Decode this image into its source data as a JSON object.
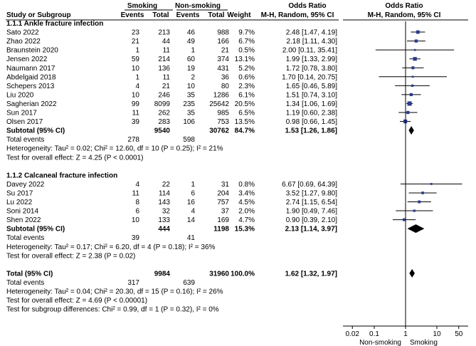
{
  "header": {
    "group_smoking": "Smoking",
    "group_nonsmoking": "Non-smoking",
    "odds_ratio": "Odds Ratio",
    "odds_ratio_right": "Odds Ratio",
    "study": "Study or Subgroup",
    "events1": "Events",
    "total1": "Total",
    "events2": "Events",
    "total2": "Total",
    "weight": "Weight",
    "method": "M-H, Random, 95% CI",
    "method_right": "M-H, Random, 95% CI"
  },
  "chart_data": {
    "type": "forest",
    "x_scale": "log",
    "xlim": [
      0.01,
      100
    ],
    "ticks": [
      "0.02",
      "0.1",
      "1",
      "10",
      "50"
    ],
    "tick_values": [
      0.02,
      0.1,
      1,
      10,
      50
    ],
    "xlabel_left": "Non-smoking",
    "xlabel_right": "Smoking",
    "null_value": 1,
    "subgroups": [
      {
        "title": "1.1.1 Ankle fracture infection",
        "studies": [
          {
            "name": "Sato 2022",
            "e1": "23",
            "t1": "213",
            "e2": "46",
            "t2": "988",
            "weight": "9.7%",
            "ci_text": "2.48 [1.47, 4.19]",
            "or": 2.48,
            "lo": 1.47,
            "hi": 4.19
          },
          {
            "name": "Zhao 2022",
            "e1": "21",
            "t1": "44",
            "e2": "49",
            "t2": "166",
            "weight": "6.7%",
            "ci_text": "2.18 [1.11, 4.30]",
            "or": 2.18,
            "lo": 1.11,
            "hi": 4.3
          },
          {
            "name": "Braunstein 2020",
            "e1": "1",
            "t1": "11",
            "e2": "1",
            "t2": "21",
            "weight": "0.5%",
            "ci_text": "2.00 [0.11, 35.41]",
            "or": 2.0,
            "lo": 0.11,
            "hi": 35.41
          },
          {
            "name": "Jensen 2022",
            "e1": "59",
            "t1": "214",
            "e2": "60",
            "t2": "374",
            "weight": "13.1%",
            "ci_text": "1.99 [1.33, 2.99]",
            "or": 1.99,
            "lo": 1.33,
            "hi": 2.99
          },
          {
            "name": "Naumann 2017",
            "e1": "10",
            "t1": "136",
            "e2": "19",
            "t2": "431",
            "weight": "5.2%",
            "ci_text": "1.72 [0.78, 3.80]",
            "or": 1.72,
            "lo": 0.78,
            "hi": 3.8
          },
          {
            "name": "Abdelgaid 2018",
            "e1": "1",
            "t1": "11",
            "e2": "2",
            "t2": "36",
            "weight": "0.6%",
            "ci_text": "1.70 [0.14, 20.75]",
            "or": 1.7,
            "lo": 0.14,
            "hi": 20.75
          },
          {
            "name": "Schepers 2013",
            "e1": "4",
            "t1": "21",
            "e2": "10",
            "t2": "80",
            "weight": "2.3%",
            "ci_text": "1.65 [0.46, 5.89]",
            "or": 1.65,
            "lo": 0.46,
            "hi": 5.89
          },
          {
            "name": "Liu 2020",
            "e1": "10",
            "t1": "246",
            "e2": "35",
            "t2": "1286",
            "weight": "6.1%",
            "ci_text": "1.51 [0.74, 3.10]",
            "or": 1.51,
            "lo": 0.74,
            "hi": 3.1
          },
          {
            "name": "Sagherian 2022",
            "e1": "99",
            "t1": "8099",
            "e2": "235",
            "t2": "25642",
            "weight": "20.5%",
            "ci_text": "1.34 [1.06, 1.69]",
            "or": 1.34,
            "lo": 1.06,
            "hi": 1.69
          },
          {
            "name": "Sun 2017",
            "e1": "11",
            "t1": "262",
            "e2": "35",
            "t2": "985",
            "weight": "6.5%",
            "ci_text": "1.19 [0.60, 2.38]",
            "or": 1.19,
            "lo": 0.6,
            "hi": 2.38
          },
          {
            "name": "Olsen 2017",
            "e1": "39",
            "t1": "283",
            "e2": "106",
            "t2": "753",
            "weight": "13.5%",
            "ci_text": "0.98 [0.66, 1.45]",
            "or": 0.98,
            "lo": 0.66,
            "hi": 1.45
          }
        ],
        "subtotal": {
          "label": "Subtotal (95% CI)",
          "t1": "9540",
          "t2": "30762",
          "weight": "84.7%",
          "ci_text": "1.53 [1.26, 1.86]",
          "or": 1.53,
          "lo": 1.26,
          "hi": 1.86
        },
        "total_events": {
          "label": "Total events",
          "e1": "278",
          "e2": "598"
        },
        "heterogeneity": "Heterogeneity: Tau² = 0.02; Chi² = 12.60, df = 10 (P = 0.25); I² = 21%",
        "overall": "Test for overall effect: Z = 4.25 (P < 0.0001)"
      },
      {
        "title": "1.1.2 Calcaneal fracture infection",
        "studies": [
          {
            "name": "Davey 2022",
            "e1": "4",
            "t1": "22",
            "e2": "1",
            "t2": "31",
            "weight": "0.8%",
            "ci_text": "6.67 [0.69, 64.39]",
            "or": 6.67,
            "lo": 0.69,
            "hi": 64.39
          },
          {
            "name": "Su 2017",
            "e1": "11",
            "t1": "114",
            "e2": "6",
            "t2": "204",
            "weight": "3.4%",
            "ci_text": "3.52 [1.27, 9.80]",
            "or": 3.52,
            "lo": 1.27,
            "hi": 9.8
          },
          {
            "name": "Lu 2022",
            "e1": "8",
            "t1": "143",
            "e2": "16",
            "t2": "757",
            "weight": "4.5%",
            "ci_text": "2.74 [1.15, 6.54]",
            "or": 2.74,
            "lo": 1.15,
            "hi": 6.54
          },
          {
            "name": "Soni 2014",
            "e1": "6",
            "t1": "32",
            "e2": "4",
            "t2": "37",
            "weight": "2.0%",
            "ci_text": "1.90 [0.49, 7.46]",
            "or": 1.9,
            "lo": 0.49,
            "hi": 7.46
          },
          {
            "name": "Shen 2022",
            "e1": "10",
            "t1": "133",
            "e2": "14",
            "t2": "169",
            "weight": "4.7%",
            "ci_text": "0.90 [0.39, 2.10]",
            "or": 0.9,
            "lo": 0.39,
            "hi": 2.1
          }
        ],
        "subtotal": {
          "label": "Subtotal (95% CI)",
          "t1": "444",
          "t2": "1198",
          "weight": "15.3%",
          "ci_text": "2.13 [1.14, 3.97]",
          "or": 2.13,
          "lo": 1.14,
          "hi": 3.97
        },
        "total_events": {
          "label": "Total events",
          "e1": "39",
          "e2": "41"
        },
        "heterogeneity": "Heterogeneity: Tau² = 0.17; Chi² = 6.20, df = 4 (P = 0.18); I² = 36%",
        "overall": "Test for overall effect: Z = 2.38 (P = 0.02)"
      }
    ],
    "total": {
      "label": "Total (95% CI)",
      "t1": "9984",
      "t2": "31960",
      "weight": "100.0%",
      "ci_text": "1.62 [1.32, 1.97]",
      "or": 1.62,
      "lo": 1.32,
      "hi": 1.97
    },
    "total_events": {
      "label": "Total events",
      "e1": "317",
      "e2": "639"
    },
    "heterogeneity": "Heterogeneity: Tau² = 0.04; Chi² = 20.30, df = 15 (P = 0.16); I² = 26%",
    "overall": "Test for overall effect: Z = 4.69 (P < 0.00001)",
    "subgroup_diff": "Test for subgroup differences: Chi² = 0.99, df = 1 (P = 0.32), I² = 0%"
  }
}
